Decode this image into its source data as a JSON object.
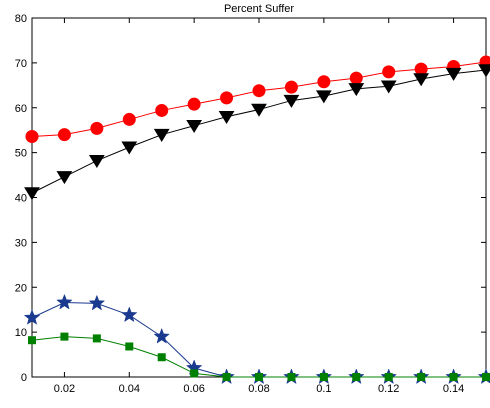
{
  "chart_data": {
    "type": "line",
    "title": "Percent Suffer",
    "xlabel": "",
    "ylabel": "",
    "xlim": [
      0.01,
      0.15
    ],
    "ylim": [
      0,
      80
    ],
    "xticks": [
      0.02,
      0.04,
      0.06,
      0.08,
      0.1,
      0.12,
      0.14
    ],
    "xtick_labels": [
      "0.02",
      "0.04",
      "0.06",
      "0.08",
      "0.1",
      "0.12",
      "0.14"
    ],
    "yticks": [
      0,
      10,
      20,
      30,
      40,
      50,
      60,
      70,
      80
    ],
    "ytick_labels": [
      "0",
      "10",
      "20",
      "30",
      "40",
      "50",
      "60",
      "70",
      "80"
    ],
    "grid": false,
    "legend": "none",
    "x": [
      0.01,
      0.02,
      0.03,
      0.04,
      0.05,
      0.06,
      0.07,
      0.08,
      0.09,
      0.1,
      0.11,
      0.12,
      0.13,
      0.14,
      0.15
    ],
    "series": [
      {
        "color": "#ff0000",
        "marker": "circle",
        "values": [
          53.6,
          54.0,
          55.4,
          57.4,
          59.4,
          60.8,
          62.2,
          63.8,
          64.6,
          65.8,
          66.6,
          68.0,
          68.6,
          69.2,
          70.2
        ]
      },
      {
        "color": "#000000",
        "marker": "triangle-down",
        "values": [
          41.0,
          44.6,
          48.2,
          51.2,
          54.0,
          56.0,
          58.0,
          59.6,
          61.6,
          62.6,
          64.2,
          64.8,
          66.4,
          67.6,
          68.4
        ]
      },
      {
        "color": "#1a3a8f",
        "marker": "star",
        "values": [
          13.2,
          16.6,
          16.4,
          13.8,
          9.0,
          2.0,
          0,
          0,
          0,
          0,
          0,
          0,
          0,
          0,
          0
        ]
      },
      {
        "color": "#008000",
        "marker": "square",
        "values": [
          8.2,
          9.0,
          8.6,
          6.8,
          4.4,
          0.8,
          0,
          0,
          0,
          0,
          0,
          0,
          0,
          0,
          0
        ]
      }
    ]
  }
}
